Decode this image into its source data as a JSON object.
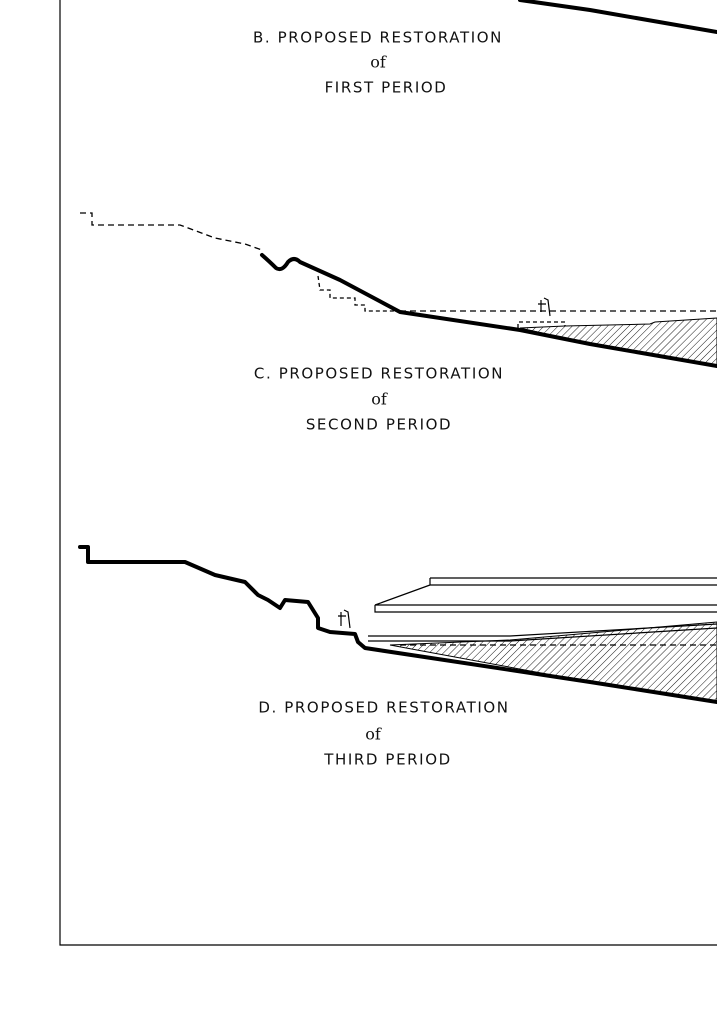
{
  "sections": [
    {
      "label": "B. PROPOSED RESTORATION",
      "of": "of",
      "period": "FIRST PERIOD"
    },
    {
      "label": "C. PROPOSED RESTORATION",
      "of": "of",
      "period": "SECOND PERIOD"
    },
    {
      "label": "D. PROPOSED RESTORATION",
      "of": "of",
      "period": "THIRD PERIOD"
    }
  ]
}
